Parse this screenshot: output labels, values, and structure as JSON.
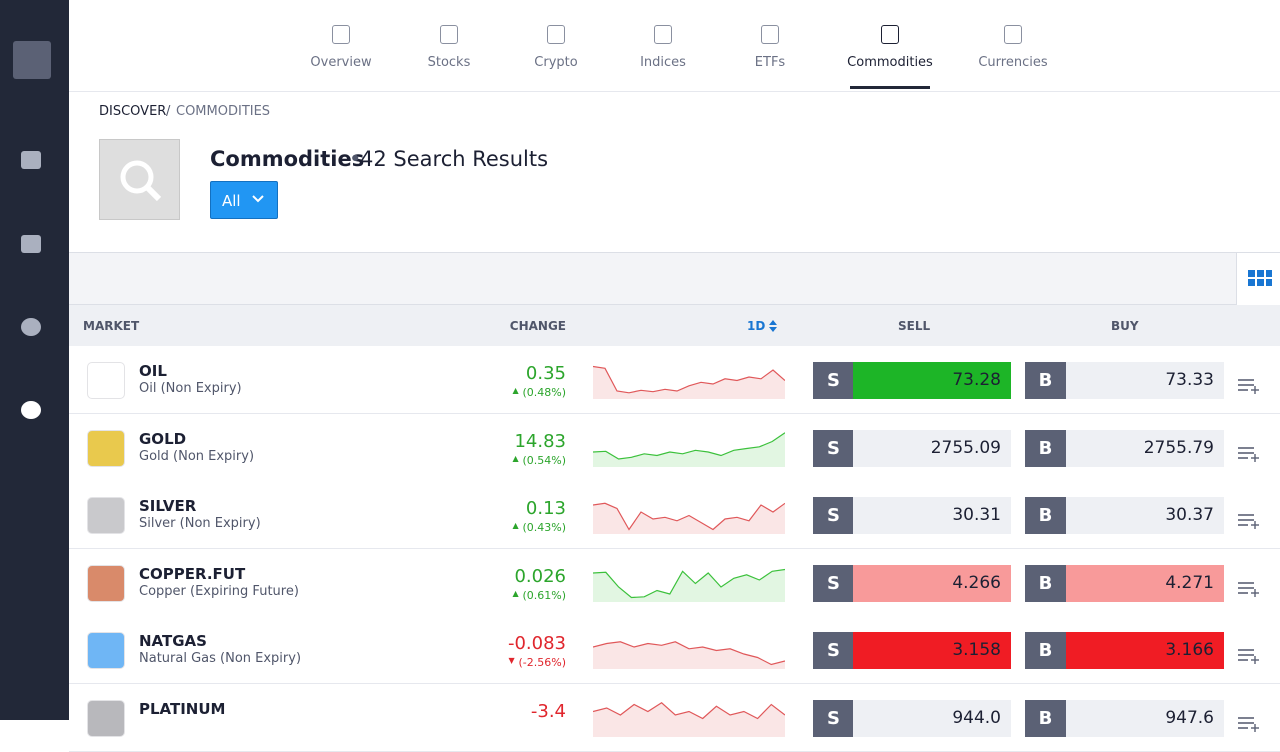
{
  "nav": {
    "tabs": [
      "Overview",
      "Stocks",
      "Crypto",
      "Indices",
      "ETFs",
      "Commodities",
      "Currencies"
    ],
    "active_tab": "Commodities"
  },
  "breadcrumb": [
    "DISCOVER",
    "COMMODITIES"
  ],
  "heading": {
    "title": "Commodities",
    "results": "42 Search Results"
  },
  "filter": "All",
  "columns": [
    "MARKET",
    "CHANGE",
    "1D",
    "SELL",
    "BUY"
  ],
  "sell_label": "S",
  "buy_label": "B",
  "rows": [
    {
      "symbol": "OIL",
      "name": "Oil (Non Expiry)",
      "change": "0.35",
      "pct": "(0.48%)",
      "trend": "up",
      "icon_color": "#ffffff",
      "spark_color": "#e0585a",
      "sell": "73.28",
      "sell_color": "#1db527",
      "buy": "73.33",
      "buy_color": "#eef0f4",
      "spark": [
        90,
        85,
        20,
        15,
        22,
        18,
        25,
        20,
        35,
        45,
        40,
        55,
        50,
        60,
        55,
        80,
        50
      ]
    },
    {
      "symbol": "GOLD",
      "name": "Gold (Non Expiry)",
      "change": "14.83",
      "pct": "(0.54%)",
      "trend": "up",
      "icon_color": "#e9c94d",
      "spark_color": "#3cc13c",
      "sell": "2755.09",
      "sell_color": "#eef0f4",
      "buy": "2755.79",
      "buy_color": "#eef0f4",
      "spark": [
        40,
        42,
        20,
        25,
        35,
        30,
        40,
        35,
        45,
        40,
        30,
        45,
        50,
        55,
        70,
        95
      ]
    },
    {
      "symbol": "SILVER",
      "name": "Silver (Non Expiry)",
      "change": "0.13",
      "pct": "(0.43%)",
      "trend": "up",
      "icon_color": "#c9c9cc",
      "spark_color": "#e0585a",
      "sell": "30.31",
      "sell_color": "#eef0f4",
      "buy": "30.37",
      "buy_color": "#eef0f4",
      "spark": [
        80,
        85,
        70,
        10,
        60,
        40,
        45,
        35,
        50,
        30,
        10,
        40,
        45,
        35,
        80,
        60,
        85
      ]
    },
    {
      "symbol": "COPPER.FUT",
      "name": "Copper (Expiring Future)",
      "change": "0.026",
      "pct": "(0.61%)",
      "trend": "up",
      "icon_color": "#d98a6a",
      "spark_color": "#3cc13c",
      "sell": "4.266",
      "sell_color": "#f89a9a",
      "buy": "4.271",
      "buy_color": "#f89a9a",
      "spark": [
        80,
        82,
        40,
        10,
        12,
        30,
        20,
        85,
        50,
        80,
        40,
        65,
        75,
        60,
        85,
        90
      ]
    },
    {
      "symbol": "NATGAS",
      "name": "Natural Gas (Non Expiry)",
      "change": "-0.083",
      "pct": "(-2.56%)",
      "trend": "down",
      "icon_color": "#6fb6f5",
      "spark_color": "#e0585a",
      "sell": "3.158",
      "sell_color": "#f01c24",
      "buy": "3.166",
      "buy_color": "#f01c24",
      "spark": [
        60,
        70,
        75,
        60,
        70,
        65,
        75,
        55,
        60,
        50,
        55,
        40,
        30,
        10,
        20
      ]
    },
    {
      "symbol": "PLATINUM",
      "change": "-3.4",
      "trend": "down",
      "icon_color": "#b8b8bc",
      "spark_color": "#e0585a",
      "sell": "944.0",
      "sell_color": "#eef0f4",
      "buy": "947.6",
      "buy_color": "#eef0f4",
      "spark": [
        70,
        80,
        60,
        90,
        70,
        95,
        60,
        70,
        50,
        85,
        60,
        70,
        50,
        90,
        60
      ]
    }
  ]
}
